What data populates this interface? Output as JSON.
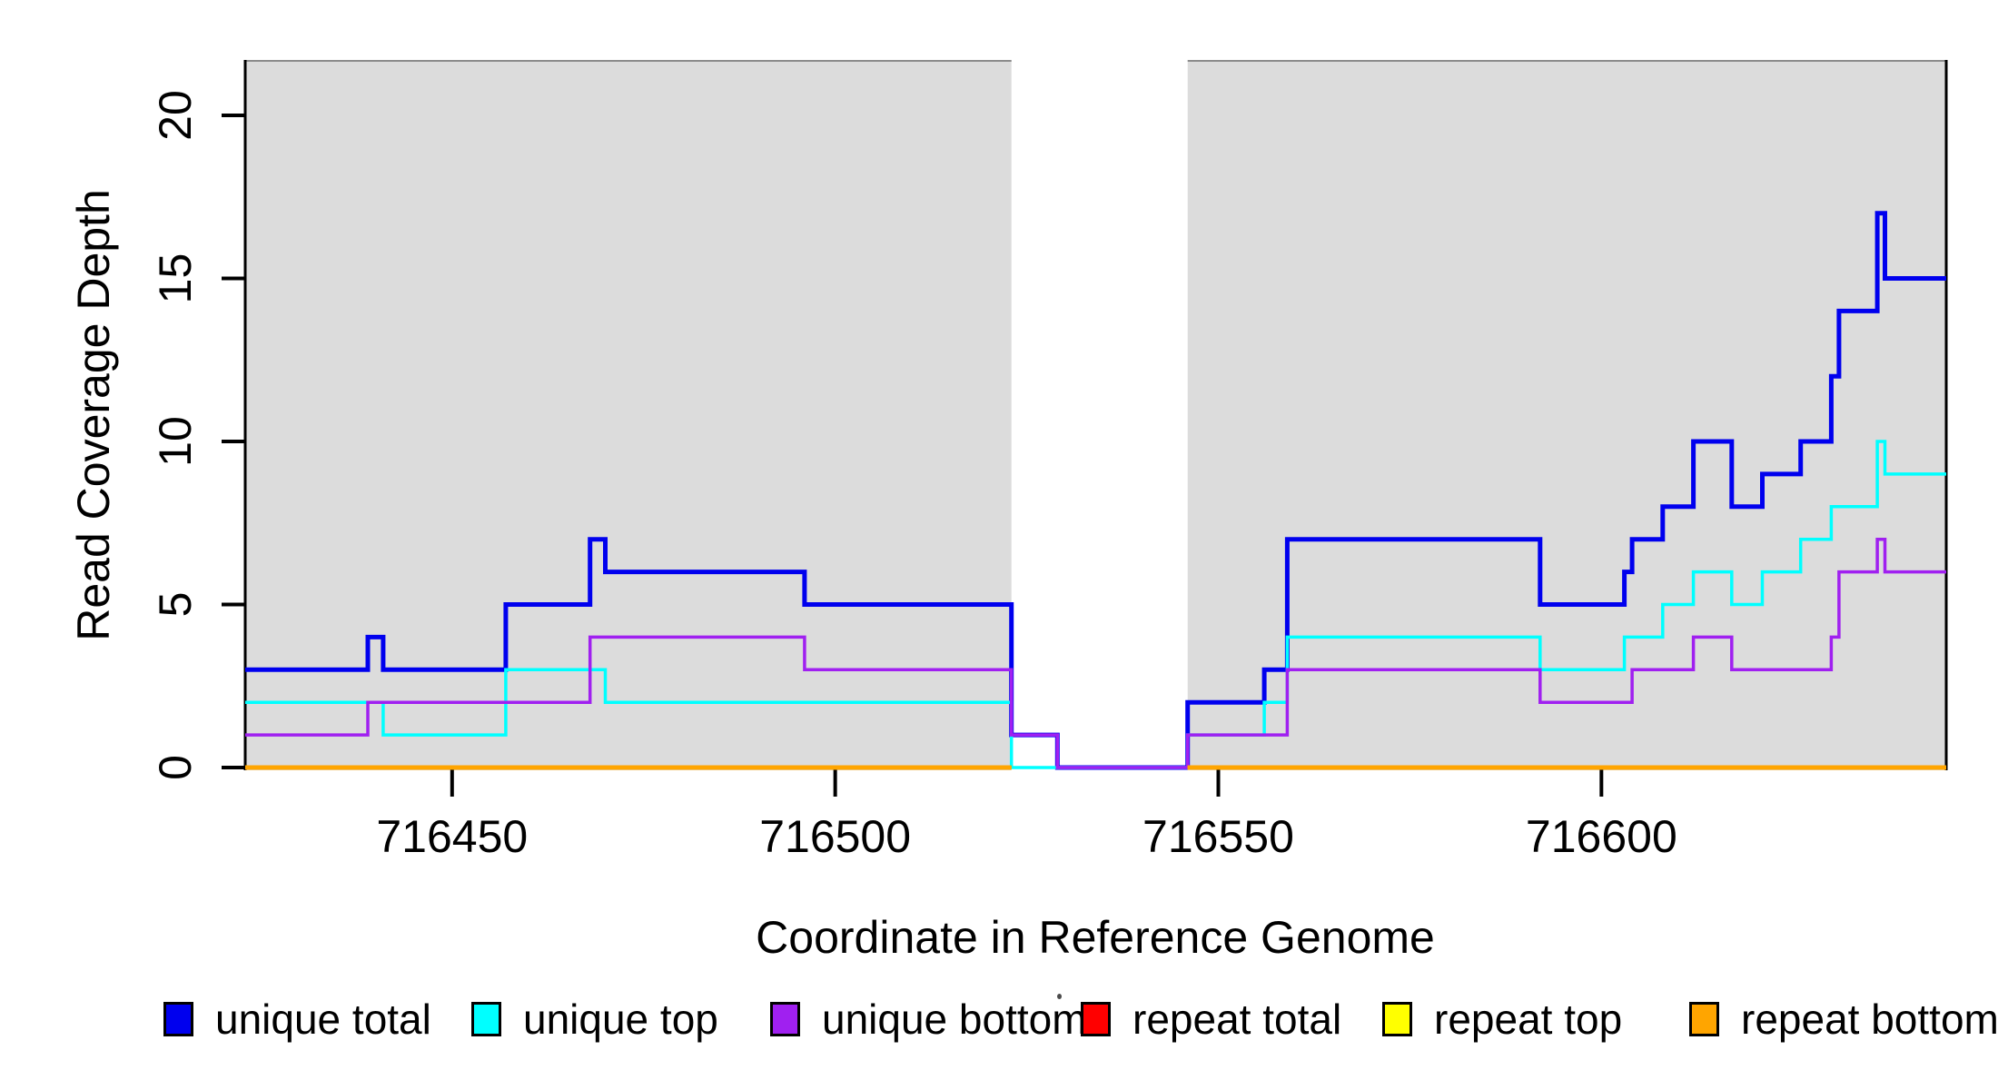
{
  "page": {
    "y_axis_title": "Read Coverage Depth",
    "x_axis_title": "Coordinate in Reference Genome"
  },
  "chart_data": {
    "type": "line",
    "subtype": "step-after",
    "title": "",
    "xlabel": "Coordinate in Reference Genome",
    "ylabel": "Read Coverage Depth",
    "x_range": [
      716423,
      716645
    ],
    "y_range": [
      0,
      21.7
    ],
    "grid": false,
    "x_ticks": [
      716450,
      716500,
      716550,
      716600
    ],
    "y_ticks": [
      0,
      5,
      10,
      15,
      20
    ],
    "background_color": "#ffffff",
    "shaded_region_color": "#dcdcdc",
    "shaded_regions": [
      {
        "start": 716423,
        "end": 716523
      },
      {
        "start": 716546,
        "end": 716645
      }
    ],
    "white_gap": {
      "start": 716523,
      "end": 716546
    },
    "series": [
      {
        "name": "unique total",
        "key": "unique-total",
        "color": "#0000EE",
        "line_width": 5,
        "segments": [
          [
            [
              716423,
              3
            ],
            [
              716439,
              4
            ],
            [
              716441,
              3
            ],
            [
              716457,
              5
            ],
            [
              716468,
              7
            ],
            [
              716470,
              6
            ],
            [
              716496,
              5
            ],
            [
              716523,
              1
            ],
            [
              716529,
              0
            ],
            [
              716546,
              2
            ],
            [
              716556,
              3
            ],
            [
              716559,
              7
            ],
            [
              716592,
              5
            ],
            [
              716603,
              6
            ],
            [
              716604,
              7
            ],
            [
              716608,
              8
            ],
            [
              716612,
              10
            ],
            [
              716617,
              8
            ],
            [
              716621,
              9
            ],
            [
              716626,
              10
            ],
            [
              716630,
              12
            ],
            [
              716631,
              14
            ],
            [
              716636,
              17
            ],
            [
              716637,
              15
            ],
            [
              716645,
              15
            ]
          ]
        ]
      },
      {
        "name": "unique top",
        "key": "unique-top",
        "color": "#00FFFF",
        "line_width": 3.5,
        "segments": [
          [
            [
              716423,
              2
            ],
            [
              716441,
              1
            ],
            [
              716457,
              3
            ],
            [
              716470,
              2
            ],
            [
              716523,
              0
            ],
            [
              716546,
              1
            ],
            [
              716556,
              2
            ],
            [
              716559,
              4
            ],
            [
              716592,
              3
            ],
            [
              716603,
              4
            ],
            [
              716608,
              5
            ],
            [
              716612,
              6
            ],
            [
              716617,
              5
            ],
            [
              716621,
              6
            ],
            [
              716626,
              7
            ],
            [
              716630,
              8
            ],
            [
              716636,
              10
            ],
            [
              716637,
              9
            ],
            [
              716645,
              9
            ]
          ]
        ]
      },
      {
        "name": "unique bottom",
        "key": "unique-bottom",
        "color": "#A020F0",
        "line_width": 3.5,
        "segments": [
          [
            [
              716423,
              1
            ],
            [
              716439,
              2
            ],
            [
              716468,
              4
            ],
            [
              716496,
              3
            ],
            [
              716523,
              1
            ],
            [
              716529,
              0
            ],
            [
              716546,
              1
            ],
            [
              716559,
              3
            ],
            [
              716592,
              2
            ],
            [
              716604,
              3
            ],
            [
              716612,
              4
            ],
            [
              716617,
              3
            ],
            [
              716630,
              4
            ],
            [
              716631,
              6
            ],
            [
              716636,
              7
            ],
            [
              716637,
              6
            ],
            [
              716645,
              6
            ]
          ]
        ]
      },
      {
        "name": "repeat total",
        "key": "repeat-total",
        "color": "#FF0000",
        "line_width": 3.5,
        "segments": [
          [
            [
              716423,
              0
            ],
            [
              716523,
              0
            ]
          ],
          [
            [
              716546,
              0
            ],
            [
              716645,
              0
            ]
          ]
        ]
      },
      {
        "name": "repeat top",
        "key": "repeat-top",
        "color": "#FFFF00",
        "line_width": 3.5,
        "segments": [
          [
            [
              716423,
              0
            ],
            [
              716523,
              0
            ]
          ],
          [
            [
              716546,
              0
            ],
            [
              716645,
              0
            ]
          ]
        ]
      },
      {
        "name": "repeat bottom",
        "key": "repeat-bottom",
        "color": "#FFA500",
        "line_width": 5,
        "segments": [
          [
            [
              716423,
              0
            ],
            [
              716523,
              0
            ]
          ],
          [
            [
              716546,
              0
            ],
            [
              716645,
              0
            ]
          ]
        ]
      }
    ]
  },
  "legend": {
    "position": "bottom",
    "items": [
      {
        "key": "unique-total",
        "label": "unique total",
        "color": "#0000EE"
      },
      {
        "key": "unique-top",
        "label": "unique top",
        "color": "#00FFFF"
      },
      {
        "key": "unique-bottom",
        "label": "unique bottom",
        "color": "#A020F0"
      },
      {
        "key": "repeat-total",
        "label": "repeat total",
        "color": "#FF0000"
      },
      {
        "key": "repeat-top",
        "label": "repeat top",
        "color": "#FFFF00"
      },
      {
        "key": "repeat-bottom",
        "label": "repeat bottom",
        "color": "#FFA500"
      }
    ]
  },
  "colors": {
    "axis": "#000000",
    "tick_label": "#000000",
    "plot_shading": "#dcdcdc",
    "shading_top_edge": "#8c8c8c"
  }
}
